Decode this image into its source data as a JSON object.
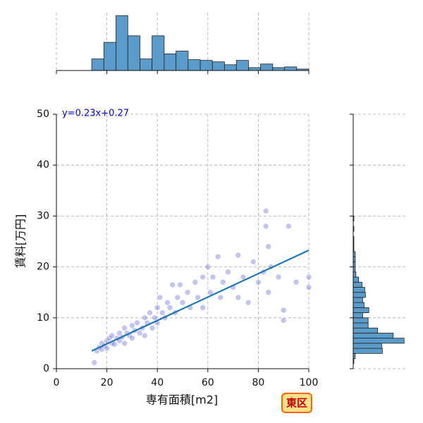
{
  "chart_data": [
    {
      "type": "histogram",
      "orientation": "vertical",
      "color": "#5a9bc9",
      "bins": [
        14,
        18.8,
        23.6,
        28.3,
        33.1,
        37.9,
        42.7,
        47.4,
        52.2,
        57,
        61.8,
        66.6,
        71.3,
        76.1,
        80.9,
        85.7,
        90.4,
        95.2,
        100
      ],
      "counts": [
        16,
        39,
        76,
        48,
        16,
        48,
        23,
        27,
        15,
        14,
        12,
        8,
        14,
        4,
        9,
        4,
        5,
        2
      ],
      "xlim": [
        0,
        100
      ],
      "xticks": [
        0,
        20,
        40,
        60,
        80,
        100
      ],
      "ylim": [
        0,
        80
      ],
      "grid": true
    },
    {
      "type": "scatter",
      "color": "#3a3acf",
      "xlabel": "専有面積[m2]",
      "ylabel": "賃料[万円]",
      "annotation": "y=0.23x+0.27",
      "label": "東区",
      "x": [
        15,
        16,
        17,
        18,
        18,
        19,
        20,
        20,
        21,
        22,
        22,
        23,
        24,
        25,
        25,
        26,
        27,
        27,
        28,
        29,
        30,
        30,
        31,
        32,
        33,
        34,
        35,
        35,
        36,
        37,
        38,
        39,
        40,
        40,
        41,
        42,
        43,
        44,
        45,
        46,
        47,
        48,
        49,
        50,
        52,
        53,
        55,
        56,
        58,
        58,
        60,
        61,
        62,
        64,
        65,
        66,
        68,
        70,
        72,
        72,
        74,
        76,
        78,
        80,
        82,
        83,
        83,
        84,
        84,
        85,
        88,
        90,
        90,
        92,
        95,
        100,
        100
      ],
      "values": [
        1.2,
        3.5,
        4.2,
        3.8,
        5,
        4.5,
        5.5,
        4,
        6,
        5,
        6.5,
        4.8,
        6,
        7,
        5.5,
        6.2,
        8,
        5,
        7,
        6.5,
        8.5,
        6,
        7.5,
        9,
        7,
        8,
        10,
        6.5,
        9,
        11,
        8,
        10,
        12,
        9,
        14,
        11,
        10,
        13,
        12,
        16.5,
        11,
        14,
        16.5,
        13,
        15,
        12,
        17,
        14,
        18,
        12,
        20,
        15,
        18,
        22,
        14,
        17,
        19,
        16,
        22.3,
        14,
        18,
        13,
        21,
        17,
        19,
        31,
        28,
        24,
        15,
        20,
        18,
        11.5,
        9.5,
        28,
        17,
        18,
        16
      ],
      "line": {
        "color": "#1f77b4",
        "x": [
          14,
          100
        ],
        "values": [
          3.49,
          23.27
        ]
      },
      "xlim": [
        0,
        100
      ],
      "ylim": [
        0,
        50
      ],
      "xticks": [
        0,
        20,
        40,
        60,
        80,
        100
      ],
      "yticks": [
        0,
        10,
        20,
        30,
        40,
        50
      ],
      "grid": true
    },
    {
      "type": "histogram",
      "orientation": "horizontal",
      "color": "#5a9bc9",
      "bins": [
        1,
        2,
        3,
        4,
        5,
        6,
        7,
        8,
        9,
        10,
        11,
        12,
        13,
        14,
        15,
        16,
        17,
        18,
        19,
        20,
        21,
        22,
        23,
        24,
        25,
        26,
        27,
        28,
        29,
        30,
        31
      ],
      "counts": [
        1,
        3,
        43,
        42,
        75,
        59,
        36,
        22,
        22,
        14,
        23,
        16,
        14,
        18,
        17,
        13,
        8,
        4,
        3,
        3,
        3,
        3,
        1,
        1,
        1,
        0,
        1,
        0,
        1,
        0
      ],
      "xlim": [
        0,
        80
      ],
      "ylim": [
        0,
        50
      ],
      "yticks": [
        0,
        10,
        20,
        30,
        40,
        50
      ],
      "grid": true
    }
  ]
}
